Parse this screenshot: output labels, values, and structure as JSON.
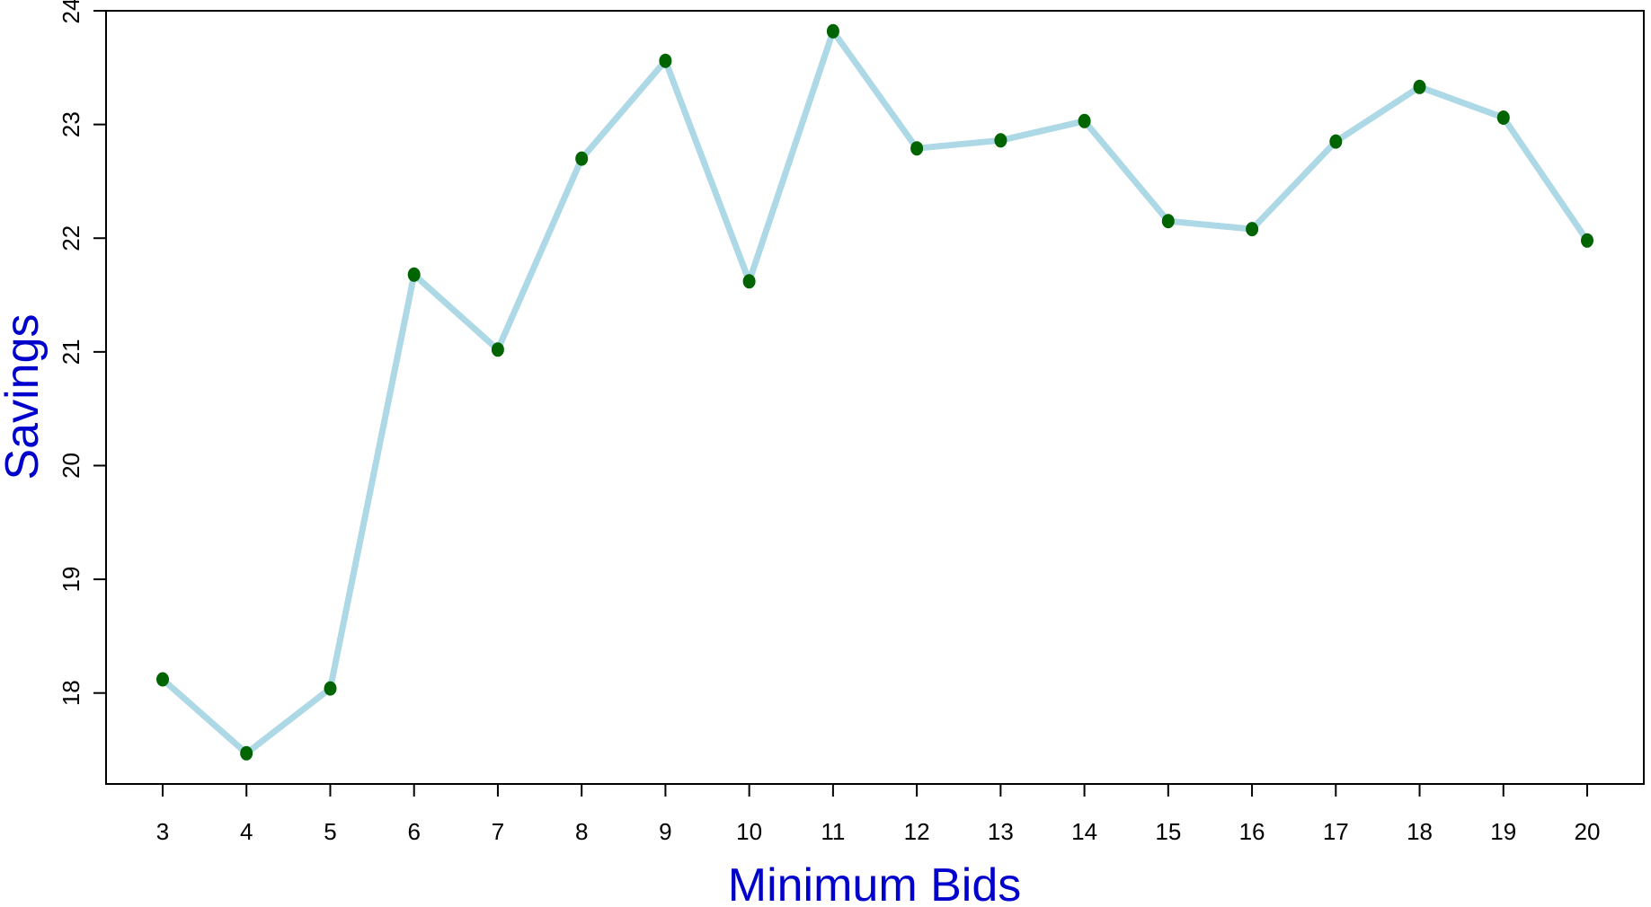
{
  "chart_data": {
    "type": "line",
    "title": "",
    "xlabel": "Minimum Bids",
    "ylabel": "Savings",
    "x": [
      3,
      4,
      5,
      6,
      7,
      8,
      9,
      10,
      11,
      12,
      13,
      14,
      15,
      16,
      17,
      18,
      19,
      20
    ],
    "x_tick_labels": [
      "3",
      "4",
      "5",
      "6",
      "7",
      "8",
      "9",
      "10",
      "11",
      "12",
      "13",
      "14",
      "15",
      "16",
      "17",
      "18",
      "19",
      "20"
    ],
    "series": [
      {
        "values": [
          18.12,
          17.47,
          18.04,
          21.68,
          21.02,
          22.7,
          23.56,
          21.62,
          23.82,
          22.79,
          22.86,
          23.03,
          22.15,
          22.08,
          22.85,
          23.33,
          23.06,
          21.98
        ]
      }
    ],
    "ylim": [
      17.2,
      24.0
    ],
    "y_ticks": [
      18,
      19,
      20,
      21,
      22,
      23,
      24
    ],
    "y_tick_labels": [
      "18",
      "19",
      "20",
      "21",
      "22",
      "23",
      "24"
    ],
    "grid": false,
    "legend": "none",
    "colors": {
      "line": "#add8e6",
      "points": "#006400",
      "axis_title": "#0000cd",
      "frame": "#000000"
    }
  }
}
